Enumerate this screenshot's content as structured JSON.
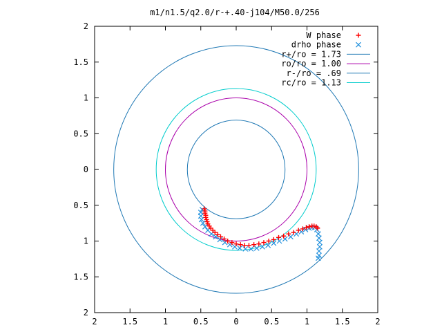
{
  "chart_data": {
    "type": "scatter",
    "title": "m1/n1.5/q2.0/r-+.40-j104/M50.0/256",
    "xlim": [
      -2,
      2
    ],
    "ylim": [
      -2,
      2
    ],
    "x_ticks": [
      {
        "value": -2,
        "label": "2"
      },
      {
        "value": -1.5,
        "label": "1.5"
      },
      {
        "value": -1,
        "label": "1"
      },
      {
        "value": -0.5,
        "label": "0.5"
      },
      {
        "value": 0,
        "label": "0"
      },
      {
        "value": 0.5,
        "label": "0.5"
      },
      {
        "value": 1,
        "label": "1"
      },
      {
        "value": 1.5,
        "label": "1.5"
      },
      {
        "value": 2,
        "label": "2"
      }
    ],
    "y_ticks": [
      {
        "value": 2,
        "label": "2"
      },
      {
        "value": 1.5,
        "label": "1.5"
      },
      {
        "value": 1,
        "label": "1"
      },
      {
        "value": 0.5,
        "label": "0.5"
      },
      {
        "value": 0,
        "label": "0"
      },
      {
        "value": -0.5,
        "label": "0.5"
      },
      {
        "value": -1,
        "label": "1"
      },
      {
        "value": -1.5,
        "label": "1.5"
      },
      {
        "value": -2,
        "label": "2"
      }
    ],
    "grid": false,
    "legend_position": "top-right",
    "circles": [
      {
        "name": "r+/ro = 1.73",
        "radius": 1.73,
        "color": "#1f78b4"
      },
      {
        "name": "ro/ro = 1.00",
        "radius": 1.0,
        "color": "#aa00aa"
      },
      {
        "name": "r-/ro = .69",
        "radius": 0.69,
        "color": "#1f78b4"
      },
      {
        "name": "rc/ro = 1.13",
        "radius": 1.13,
        "color": "#00cccc"
      }
    ],
    "series": [
      {
        "name": "W phase",
        "marker": "plus",
        "color": "#ff0000",
        "points": [
          [
            -0.45,
            -0.55
          ],
          [
            -0.44,
            -0.58
          ],
          [
            -0.44,
            -0.61
          ],
          [
            -0.43,
            -0.64
          ],
          [
            -0.43,
            -0.67
          ],
          [
            -0.42,
            -0.7
          ],
          [
            -0.41,
            -0.73
          ],
          [
            -0.4,
            -0.76
          ],
          [
            -0.38,
            -0.79
          ],
          [
            -0.36,
            -0.82
          ],
          [
            -0.33,
            -0.85
          ],
          [
            -0.3,
            -0.88
          ],
          [
            -0.26,
            -0.91
          ],
          [
            -0.22,
            -0.94
          ],
          [
            -0.17,
            -0.97
          ],
          [
            -0.12,
            -1.0
          ],
          [
            -0.06,
            -1.02
          ],
          [
            0.0,
            -1.04
          ],
          [
            0.06,
            -1.05
          ],
          [
            0.12,
            -1.06
          ],
          [
            0.18,
            -1.06
          ],
          [
            0.25,
            -1.05
          ],
          [
            0.32,
            -1.04
          ],
          [
            0.39,
            -1.02
          ],
          [
            0.46,
            -1.0
          ],
          [
            0.53,
            -0.98
          ],
          [
            0.6,
            -0.95
          ],
          [
            0.67,
            -0.93
          ],
          [
            0.74,
            -0.9
          ],
          [
            0.81,
            -0.88
          ],
          [
            0.88,
            -0.85
          ],
          [
            0.94,
            -0.83
          ],
          [
            0.99,
            -0.81
          ],
          [
            1.03,
            -0.8
          ],
          [
            1.07,
            -0.79
          ],
          [
            1.1,
            -0.79
          ],
          [
            1.13,
            -0.8
          ],
          [
            1.15,
            -0.82
          ]
        ]
      },
      {
        "name": "drho phase",
        "marker": "x",
        "color": "#1f8fdc",
        "points": [
          [
            -0.48,
            -0.56
          ],
          [
            -0.5,
            -0.6
          ],
          [
            -0.5,
            -0.65
          ],
          [
            -0.49,
            -0.7
          ],
          [
            -0.47,
            -0.75
          ],
          [
            -0.44,
            -0.8
          ],
          [
            -0.4,
            -0.85
          ],
          [
            -0.35,
            -0.9
          ],
          [
            -0.29,
            -0.94
          ],
          [
            -0.23,
            -0.98
          ],
          [
            -0.16,
            -1.02
          ],
          [
            -0.09,
            -1.05
          ],
          [
            -0.02,
            -1.08
          ],
          [
            0.05,
            -1.1
          ],
          [
            0.13,
            -1.11
          ],
          [
            0.21,
            -1.11
          ],
          [
            0.29,
            -1.1
          ],
          [
            0.37,
            -1.08
          ],
          [
            0.45,
            -1.06
          ],
          [
            0.53,
            -1.03
          ],
          [
            0.61,
            -1.0
          ],
          [
            0.69,
            -0.97
          ],
          [
            0.77,
            -0.94
          ],
          [
            0.85,
            -0.9
          ],
          [
            0.92,
            -0.87
          ],
          [
            0.98,
            -0.84
          ],
          [
            1.03,
            -0.82
          ],
          [
            1.07,
            -0.81
          ],
          [
            1.11,
            -0.81
          ],
          [
            1.14,
            -0.84
          ],
          [
            1.16,
            -0.9
          ],
          [
            1.17,
            -0.96
          ],
          [
            1.18,
            -1.02
          ],
          [
            1.18,
            -1.08
          ],
          [
            1.17,
            -1.14
          ],
          [
            1.17,
            -1.2
          ],
          [
            1.16,
            -1.24
          ]
        ]
      }
    ]
  }
}
